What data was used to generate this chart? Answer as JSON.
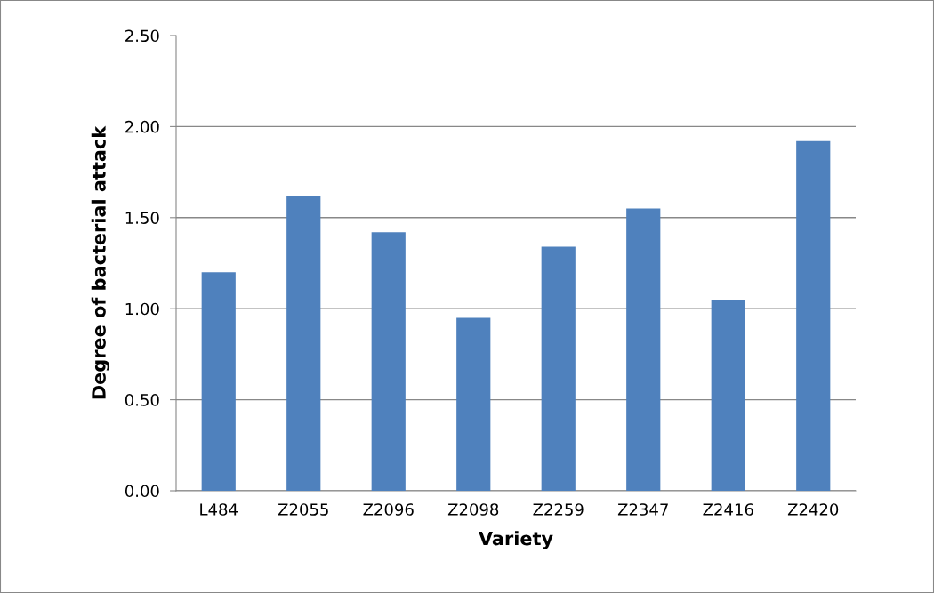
{
  "chart_data": {
    "type": "bar",
    "xlabel": "Variety",
    "ylabel": "Degree of bacterial attack",
    "categories": [
      "L484",
      "Z2055",
      "Z2096",
      "Z2098",
      "Z2259",
      "Z2347",
      "Z2416",
      "Z2420"
    ],
    "values": [
      1.2,
      1.62,
      1.42,
      0.95,
      1.34,
      1.55,
      1.05,
      1.92
    ],
    "color": "#4f81bd",
    "ylim": [
      0,
      2.5
    ],
    "yticks": [
      {
        "value": 0,
        "label": "0.00"
      },
      {
        "value": 0.5,
        "label": "0.50"
      },
      {
        "value": 1,
        "label": "1.00"
      },
      {
        "value": 1.5,
        "label": "1.50"
      },
      {
        "value": 2,
        "label": "2.00"
      },
      {
        "value": 2.5,
        "label": "2.50"
      }
    ],
    "grid": "y",
    "legend": false
  }
}
